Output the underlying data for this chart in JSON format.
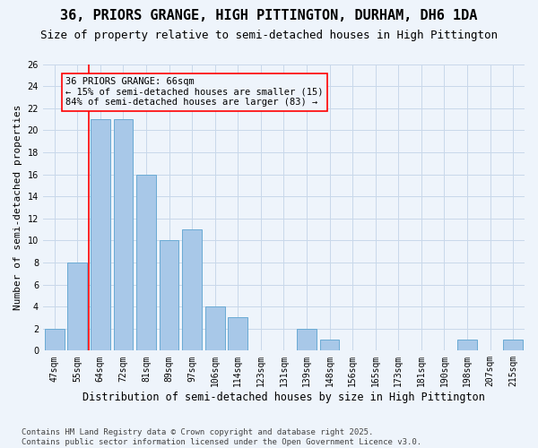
{
  "title": "36, PRIORS GRANGE, HIGH PITTINGTON, DURHAM, DH6 1DA",
  "subtitle": "Size of property relative to semi-detached houses in High Pittington",
  "xlabel": "Distribution of semi-detached houses by size in High Pittington",
  "ylabel": "Number of semi-detached properties",
  "categories": [
    "47sqm",
    "55sqm",
    "64sqm",
    "72sqm",
    "81sqm",
    "89sqm",
    "97sqm",
    "106sqm",
    "114sqm",
    "123sqm",
    "131sqm",
    "139sqm",
    "148sqm",
    "156sqm",
    "165sqm",
    "173sqm",
    "181sqm",
    "190sqm",
    "198sqm",
    "207sqm",
    "215sqm"
  ],
  "values": [
    2,
    8,
    21,
    21,
    16,
    10,
    11,
    4,
    3,
    0,
    0,
    2,
    1,
    0,
    0,
    0,
    0,
    0,
    1,
    0,
    1
  ],
  "bar_color": "#a8c8e8",
  "bar_edge_color": "#6aaad4",
  "grid_color": "#c8d8ea",
  "background_color": "#eef4fb",
  "vline_x": 1.5,
  "vline_color": "red",
  "annotation_title": "36 PRIORS GRANGE: 66sqm",
  "annotation_line1": "← 15% of semi-detached houses are smaller (15)",
  "annotation_line2": "84% of semi-detached houses are larger (83) →",
  "annotation_box_color": "red",
  "ylim": [
    0,
    26
  ],
  "yticks": [
    0,
    2,
    4,
    6,
    8,
    10,
    12,
    14,
    16,
    18,
    20,
    22,
    24,
    26
  ],
  "footer": "Contains HM Land Registry data © Crown copyright and database right 2025.\nContains public sector information licensed under the Open Government Licence v3.0.",
  "title_fontsize": 11,
  "subtitle_fontsize": 9,
  "ylabel_fontsize": 8,
  "xlabel_fontsize": 8.5,
  "tick_fontsize": 7,
  "annotation_fontsize": 7.5,
  "footer_fontsize": 6.5
}
